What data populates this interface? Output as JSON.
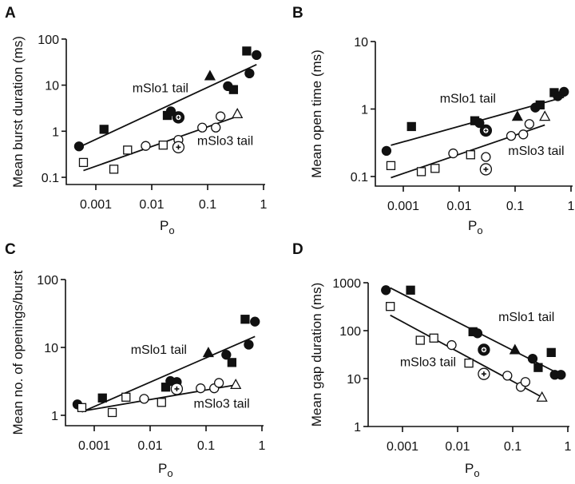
{
  "chart_data": [
    {
      "panel": "A",
      "type": "scatter",
      "title": "",
      "xlabel": "Po",
      "ylabel": "Mean burst duration (ms)",
      "xscale": "log",
      "yscale": "log",
      "xlim": [
        0.0004,
        1
      ],
      "ylim": [
        0.1,
        100
      ],
      "xticks": [
        "0.001",
        "0.01",
        "0.1",
        "1"
      ],
      "yticks": [
        "0.1",
        "1",
        "10",
        "100"
      ],
      "grid": false,
      "annotations": [
        {
          "text": "mSlo1 tail",
          "x": 0.0045,
          "y": 7
        },
        {
          "text": "mSlo3 tail",
          "x": 0.065,
          "y": 0.5
        }
      ],
      "series": [
        {
          "name": "mSlo1 tail",
          "fill": "filled",
          "points": [
            {
              "x": 0.0005,
              "y": 0.47,
              "marker": "circle"
            },
            {
              "x": 0.0014,
              "y": 1.1,
              "marker": "square"
            },
            {
              "x": 0.019,
              "y": 2.2,
              "marker": "square"
            },
            {
              "x": 0.022,
              "y": 2.7,
              "marker": "circle"
            },
            {
              "x": 0.03,
              "y": 2.0,
              "marker": "circle-plus"
            },
            {
              "x": 0.11,
              "y": 16,
              "marker": "triangle"
            },
            {
              "x": 0.23,
              "y": 9.5,
              "marker": "circle"
            },
            {
              "x": 0.29,
              "y": 8.0,
              "marker": "square"
            },
            {
              "x": 0.5,
              "y": 55,
              "marker": "square"
            },
            {
              "x": 0.56,
              "y": 18,
              "marker": "circle"
            },
            {
              "x": 0.75,
              "y": 45,
              "marker": "circle"
            }
          ],
          "fit": {
            "x": [
              0.0005,
              0.75
            ],
            "y": [
              0.45,
              28
            ]
          }
        },
        {
          "name": "mSlo3 tail",
          "fill": "open",
          "points": [
            {
              "x": 0.0006,
              "y": 0.21,
              "marker": "square"
            },
            {
              "x": 0.0021,
              "y": 0.15,
              "marker": "square"
            },
            {
              "x": 0.0037,
              "y": 0.39,
              "marker": "square"
            },
            {
              "x": 0.0078,
              "y": 0.48,
              "marker": "circle"
            },
            {
              "x": 0.016,
              "y": 0.5,
              "marker": "square"
            },
            {
              "x": 0.03,
              "y": 0.65,
              "marker": "circle"
            },
            {
              "x": 0.03,
              "y": 0.45,
              "marker": "circle-plus"
            },
            {
              "x": 0.08,
              "y": 1.2,
              "marker": "circle"
            },
            {
              "x": 0.14,
              "y": 1.2,
              "marker": "circle"
            },
            {
              "x": 0.17,
              "y": 2.1,
              "marker": "circle"
            },
            {
              "x": 0.34,
              "y": 2.4,
              "marker": "triangle"
            }
          ],
          "fit": {
            "x": [
              0.0006,
              0.34
            ],
            "y": [
              0.14,
              2.1
            ]
          }
        }
      ]
    },
    {
      "panel": "B",
      "type": "scatter",
      "title": "",
      "xlabel": "Po",
      "ylabel": "Mean open time (ms)",
      "xscale": "log",
      "yscale": "log",
      "xlim": [
        0.0004,
        1
      ],
      "ylim": [
        0.1,
        10
      ],
      "xticks": [
        "0.001",
        "0.01",
        "0.1",
        "1"
      ],
      "yticks": [
        "0.1",
        "1",
        "10"
      ],
      "grid": false,
      "annotations": [
        {
          "text": "mSlo1 tail",
          "x": 0.0045,
          "y": 1.25
        },
        {
          "text": "mSlo3 tail",
          "x": 0.075,
          "y": 0.21
        }
      ],
      "series": [
        {
          "name": "mSlo1 tail",
          "fill": "filled",
          "points": [
            {
              "x": 0.0005,
              "y": 0.24,
              "marker": "circle"
            },
            {
              "x": 0.0014,
              "y": 0.55,
              "marker": "square"
            },
            {
              "x": 0.019,
              "y": 0.67,
              "marker": "square"
            },
            {
              "x": 0.023,
              "y": 0.62,
              "marker": "circle"
            },
            {
              "x": 0.03,
              "y": 0.48,
              "marker": "circle-plus"
            },
            {
              "x": 0.11,
              "y": 0.78,
              "marker": "triangle"
            },
            {
              "x": 0.23,
              "y": 1.05,
              "marker": "circle"
            },
            {
              "x": 0.28,
              "y": 1.15,
              "marker": "square"
            },
            {
              "x": 0.5,
              "y": 1.75,
              "marker": "square"
            },
            {
              "x": 0.58,
              "y": 1.55,
              "marker": "circle"
            },
            {
              "x": 0.75,
              "y": 1.8,
              "marker": "circle"
            }
          ],
          "fit": {
            "x": [
              0.0006,
              0.75
            ],
            "y": [
              0.29,
              1.5
            ]
          }
        },
        {
          "name": "mSlo3 tail",
          "fill": "open",
          "points": [
            {
              "x": 0.0006,
              "y": 0.145,
              "marker": "square"
            },
            {
              "x": 0.0021,
              "y": 0.118,
              "marker": "square"
            },
            {
              "x": 0.0037,
              "y": 0.132,
              "marker": "square"
            },
            {
              "x": 0.0078,
              "y": 0.22,
              "marker": "circle"
            },
            {
              "x": 0.016,
              "y": 0.21,
              "marker": "square"
            },
            {
              "x": 0.03,
              "y": 0.195,
              "marker": "circle"
            },
            {
              "x": 0.03,
              "y": 0.128,
              "marker": "circle-plus"
            },
            {
              "x": 0.085,
              "y": 0.4,
              "marker": "circle"
            },
            {
              "x": 0.14,
              "y": 0.42,
              "marker": "circle"
            },
            {
              "x": 0.18,
              "y": 0.6,
              "marker": "circle"
            },
            {
              "x": 0.34,
              "y": 0.78,
              "marker": "triangle"
            }
          ],
          "fit": {
            "x": [
              0.0006,
              0.34
            ],
            "y": [
              0.096,
              0.58
            ]
          }
        }
      ]
    },
    {
      "panel": "C",
      "type": "scatter",
      "title": "",
      "xlabel": "Po",
      "ylabel": "Mean no. of openings/burst",
      "xscale": "log",
      "yscale": "log",
      "xlim": [
        0.0004,
        1
      ],
      "ylim": [
        1,
        100
      ],
      "xticks": [
        "0.001",
        "0.01",
        "0.1",
        "1"
      ],
      "yticks": [
        "1",
        "10",
        "100"
      ],
      "grid": false,
      "annotations": [
        {
          "text": "mSlo1 tail",
          "x": 0.0045,
          "y": 8
        },
        {
          "text": "mSlo3 tail",
          "x": 0.06,
          "y": 1.3
        }
      ],
      "series": [
        {
          "name": "mSlo1 tail",
          "fill": "filled",
          "points": [
            {
              "x": 0.0005,
              "y": 1.45,
              "marker": "circle"
            },
            {
              "x": 0.0014,
              "y": 1.8,
              "marker": "square"
            },
            {
              "x": 0.019,
              "y": 2.6,
              "marker": "square"
            },
            {
              "x": 0.023,
              "y": 3.2,
              "marker": "circle"
            },
            {
              "x": 0.03,
              "y": 3.1,
              "marker": "circle"
            },
            {
              "x": 0.11,
              "y": 8.4,
              "marker": "triangle"
            },
            {
              "x": 0.23,
              "y": 7.8,
              "marker": "circle"
            },
            {
              "x": 0.29,
              "y": 6.0,
              "marker": "square"
            },
            {
              "x": 0.5,
              "y": 26,
              "marker": "square"
            },
            {
              "x": 0.58,
              "y": 11,
              "marker": "circle"
            },
            {
              "x": 0.75,
              "y": 24,
              "marker": "circle"
            }
          ],
          "fit": {
            "x": [
              0.0006,
              0.75
            ],
            "y": [
              1.12,
              14.5
            ]
          }
        },
        {
          "name": "mSlo3 tail",
          "fill": "open",
          "points": [
            {
              "x": 0.0006,
              "y": 1.3,
              "marker": "square"
            },
            {
              "x": 0.0021,
              "y": 1.1,
              "marker": "square"
            },
            {
              "x": 0.0037,
              "y": 1.85,
              "marker": "square"
            },
            {
              "x": 0.0078,
              "y": 1.75,
              "marker": "circle"
            },
            {
              "x": 0.016,
              "y": 1.55,
              "marker": "square"
            },
            {
              "x": 0.03,
              "y": 2.45,
              "marker": "circle-plus"
            },
            {
              "x": 0.08,
              "y": 2.5,
              "marker": "circle"
            },
            {
              "x": 0.14,
              "y": 2.5,
              "marker": "circle"
            },
            {
              "x": 0.17,
              "y": 3.0,
              "marker": "circle"
            },
            {
              "x": 0.34,
              "y": 2.85,
              "marker": "triangle"
            }
          ],
          "fit": {
            "x": [
              0.0006,
              0.34
            ],
            "y": [
              1.15,
              2.8
            ]
          }
        }
      ]
    },
    {
      "panel": "D",
      "type": "scatter",
      "title": "",
      "xlabel": "Po",
      "ylabel": "Mean gap duration (ms)",
      "xscale": "log",
      "yscale": "log",
      "xlim": [
        0.0004,
        1
      ],
      "ylim": [
        1,
        1000
      ],
      "xticks": [
        "0.001",
        "0.01",
        "0.1",
        "1"
      ],
      "yticks": [
        "1",
        "10",
        "100",
        "1000"
      ],
      "grid": false,
      "annotations": [
        {
          "text": "mSlo1 tail",
          "x": 0.055,
          "y": 160
        },
        {
          "text": "mSlo3 tail",
          "x": 0.0009,
          "y": 18
        }
      ],
      "series": [
        {
          "name": "mSlo1 tail",
          "fill": "filled",
          "points": [
            {
              "x": 0.0005,
              "y": 700,
              "marker": "circle"
            },
            {
              "x": 0.0014,
              "y": 700,
              "marker": "square"
            },
            {
              "x": 0.019,
              "y": 95,
              "marker": "square"
            },
            {
              "x": 0.023,
              "y": 88,
              "marker": "circle"
            },
            {
              "x": 0.03,
              "y": 40,
              "marker": "circle-plus"
            },
            {
              "x": 0.11,
              "y": 40,
              "marker": "triangle"
            },
            {
              "x": 0.23,
              "y": 26,
              "marker": "circle"
            },
            {
              "x": 0.29,
              "y": 17,
              "marker": "square"
            },
            {
              "x": 0.5,
              "y": 35,
              "marker": "square"
            },
            {
              "x": 0.58,
              "y": 12,
              "marker": "circle"
            },
            {
              "x": 0.75,
              "y": 12,
              "marker": "circle"
            }
          ],
          "fit": {
            "x": [
              0.0006,
              0.75
            ],
            "y": [
              780,
              12
            ]
          }
        },
        {
          "name": "mSlo3 tail",
          "fill": "open",
          "points": [
            {
              "x": 0.0006,
              "y": 320,
              "marker": "square"
            },
            {
              "x": 0.0021,
              "y": 63,
              "marker": "square"
            },
            {
              "x": 0.0037,
              "y": 70,
              "marker": "square"
            },
            {
              "x": 0.0078,
              "y": 50,
              "marker": "circle"
            },
            {
              "x": 0.016,
              "y": 21,
              "marker": "square"
            },
            {
              "x": 0.03,
              "y": 12.5,
              "marker": "circle-plus"
            },
            {
              "x": 0.08,
              "y": 11.5,
              "marker": "circle"
            },
            {
              "x": 0.14,
              "y": 6.7,
              "marker": "circle"
            },
            {
              "x": 0.17,
              "y": 8.5,
              "marker": "circle"
            },
            {
              "x": 0.34,
              "y": 4.1,
              "marker": "triangle"
            }
          ],
          "fit": {
            "x": [
              0.0006,
              0.34
            ],
            "y": [
              210,
              4.1
            ]
          }
        }
      ]
    }
  ]
}
